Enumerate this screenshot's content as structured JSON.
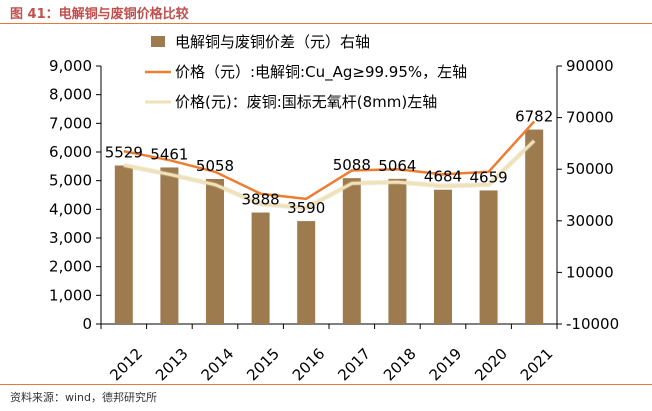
{
  "figure": {
    "title": "图 41：电解铜与废铜价格比较",
    "source": "资料来源：wind，德邦研究所"
  },
  "chart_data": {
    "type": "bar+line",
    "categories": [
      "2012",
      "2013",
      "2014",
      "2015",
      "2016",
      "2017",
      "2018",
      "2019",
      "2020",
      "2021"
    ],
    "series": [
      {
        "name": "电解铜与废铜价差（元）右轴",
        "kind": "bar",
        "axis": "left",
        "color": "#9e7a4f",
        "values": [
          5529,
          5461,
          5058,
          3888,
          3590,
          5088,
          5064,
          4684,
          4659,
          6782
        ],
        "labels": [
          "5529",
          "5461",
          "5058",
          "3888",
          "3590",
          "5088",
          "5064",
          "4684",
          "4659",
          "6782"
        ]
      },
      {
        "name": "价格（元）:电解铜:Cu_Ag≥99.95%，左轴",
        "kind": "line",
        "axis": "right",
        "color": "#ed7d31",
        "values": [
          57000,
          53500,
          49000,
          40500,
          38500,
          49500,
          50000,
          48000,
          49000,
          68500
        ]
      },
      {
        "name": "价格(元)：废铜:国标无氧杆(8mm)左轴",
        "kind": "line",
        "axis": "right",
        "color": "#efe1b8",
        "values": [
          51500,
          48000,
          44000,
          36500,
          35000,
          44500,
          45000,
          43500,
          44000,
          61000
        ]
      }
    ],
    "y_left": {
      "range": [
        0,
        9000
      ],
      "ticks": [
        0,
        1000,
        2000,
        3000,
        4000,
        5000,
        6000,
        7000,
        8000,
        9000
      ],
      "tick_labels": [
        "0",
        "1,000",
        "2,000",
        "3,000",
        "4,000",
        "5,000",
        "6,000",
        "7,000",
        "8,000",
        "9,000"
      ]
    },
    "y_right": {
      "range": [
        -10000,
        90000
      ],
      "ticks": [
        -10000,
        10000,
        30000,
        50000,
        70000,
        90000
      ],
      "tick_labels": [
        "-10000",
        "10000",
        "30000",
        "50000",
        "70000",
        "90000"
      ]
    },
    "legend_position": "top"
  }
}
